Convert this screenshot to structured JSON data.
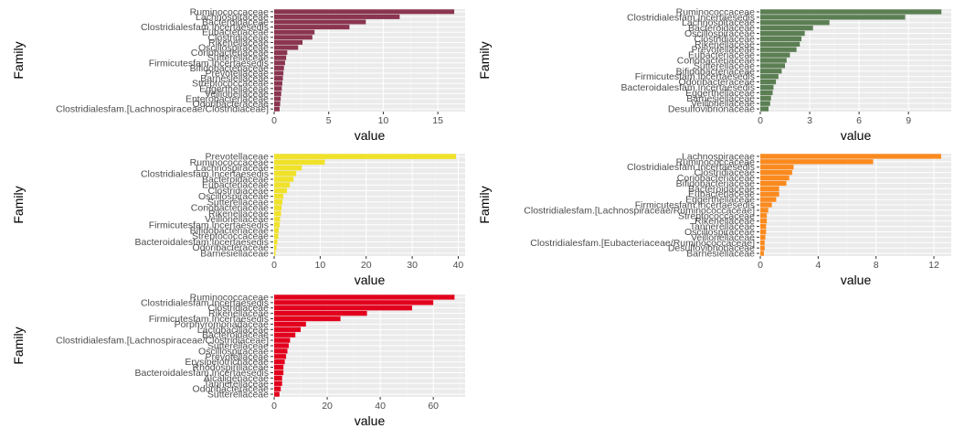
{
  "chart_data": [
    {
      "type": "bar",
      "orientation": "horizontal",
      "xlabel": "value",
      "ylabel": "Family",
      "xlim": [
        0,
        17.5
      ],
      "xticks": [
        0,
        5,
        10,
        15
      ],
      "color": "#8b3550",
      "grid": true,
      "categories": [
        "Ruminococcaceae",
        "Lachnospiraceae",
        "Bacteroidaceae",
        "Clostridialesfam.Incertaesedis",
        "Eubacteriaceae",
        "Clostridiaceae",
        "Rikenellaceae",
        "Oscillospiraceae",
        "Coriobacteriaceae",
        "Sutterellaceae",
        "Firmicutesfam.Incertaesedis",
        "Bifidobacteriaceae",
        "Prevotellaceae",
        "Barnesiellaceae",
        "Streptococcaceae",
        "Eggerthellaceae",
        "Veillonellaceae",
        "Enterobacteriaceae",
        "Odoribacteraceae",
        "Clostridialesfam.[Lachnospiraceae/Clostridiaceae]"
      ],
      "values": [
        16.5,
        11.5,
        8.4,
        6.9,
        3.7,
        3.5,
        2.6,
        2.2,
        1.2,
        1.1,
        1.0,
        0.9,
        0.85,
        0.8,
        0.75,
        0.7,
        0.65,
        0.6,
        0.55,
        0.5
      ]
    },
    {
      "type": "bar",
      "orientation": "horizontal",
      "xlabel": "value",
      "ylabel": "Family",
      "xlim": [
        0,
        11.6
      ],
      "xticks": [
        0,
        3,
        6,
        9
      ],
      "color": "#5b7f53",
      "grid": true,
      "categories": [
        "Ruminococcaceae",
        "Clostridialesfam.Incertaesedis",
        "Lachnospiraceae",
        "Bacteroidaceae",
        "Oscillospiraceae",
        "Clostridiaceae",
        "Rikenellaceae",
        "Prevotellaceae",
        "Eubacteriaceae",
        "Coriobacteriaceae",
        "Sutterellaceae",
        "Bifidobacteriaceae",
        "Firmicutesfam.Incertaesedis",
        "Odoribacteraceae",
        "Bacteroidalesfam.Incertaesedis",
        "Eggerthellaceae",
        "Barnesiellaceae",
        "Veillonellaceae",
        "Desulfovibrionaceae"
      ],
      "values": [
        11.0,
        8.8,
        4.2,
        3.2,
        2.7,
        2.5,
        2.4,
        2.2,
        1.8,
        1.6,
        1.5,
        1.3,
        1.1,
        0.95,
        0.8,
        0.75,
        0.65,
        0.6,
        0.5
      ]
    },
    {
      "type": "bar",
      "orientation": "horizontal",
      "xlabel": "value",
      "ylabel": "Family",
      "xlim": [
        0,
        41.5
      ],
      "xticks": [
        0,
        10,
        20,
        30,
        40
      ],
      "color": "#f0e229",
      "grid": true,
      "categories": [
        "Prevotellaceae",
        "Ruminococcaceae",
        "Lachnospiraceae",
        "Clostridialesfam.Incertaesedis",
        "Bacteroidaceae",
        "Eubacteriaceae",
        "Clostridiaceae",
        "Oscillospiraceae",
        "Sutterellaceae",
        "Coriobacteriaceae",
        "Rikenellaceae",
        "Veillonellaceae",
        "Firmicutesfam.Incertaesedis",
        "Bifidobacteriaceae",
        "Streptococcaceae",
        "Bacteroidalesfam.Incertaesedis",
        "Odoribacteraceae",
        "Barnesiellaceae"
      ],
      "values": [
        39.5,
        11.0,
        6.0,
        4.8,
        4.2,
        3.4,
        2.8,
        2.0,
        1.8,
        1.6,
        1.5,
        1.3,
        1.2,
        1.0,
        0.9,
        0.7,
        0.5,
        0.3
      ]
    },
    {
      "type": "bar",
      "orientation": "horizontal",
      "xlabel": "value",
      "ylabel": "Family",
      "xlim": [
        0,
        13.2
      ],
      "xticks": [
        0,
        4,
        8,
        12
      ],
      "color": "#fb8a1e",
      "grid": true,
      "categories": [
        "Lachnospiraceae",
        "Ruminococcaceae",
        "Clostridialesfam.Incertaesedis",
        "Clostridiaceae",
        "Coriobacteriaceae",
        "Bifidobacteriaceae",
        "Bacteroidaceae",
        "Eubacteriaceae",
        "Eggerthellaceae",
        "Firmicutesfam.Incertaesedis",
        "Clostridialesfam.[Lachnospiraceae/Ruminococcaceae]",
        "Streptococcaceae",
        "Rikenellaceae",
        "Tannerellaceae",
        "Oscillospiraceae",
        "Veillonellaceae",
        "Clostridialesfam.[Eubacteriaceae/Ruminococcaceae]",
        "Desulfovibrionaceae",
        "Barnesiellaceae"
      ],
      "values": [
        12.5,
        7.8,
        2.3,
        2.2,
        2.0,
        1.8,
        1.3,
        1.3,
        1.1,
        0.8,
        0.55,
        0.45,
        0.45,
        0.4,
        0.4,
        0.35,
        0.3,
        0.3,
        0.25
      ]
    },
    {
      "type": "bar",
      "orientation": "horizontal",
      "xlabel": "value",
      "ylabel": "Family",
      "xlim": [
        0,
        72
      ],
      "xticks": [
        0,
        20,
        40,
        60
      ],
      "color": "#e3001c",
      "grid": true,
      "categories": [
        "Ruminococcaceae",
        "Clostridialesfam.Incertaesedis",
        "Clostridiaceae",
        "Rikenellaceae",
        "Firmicutesfam.Incertaesedis",
        "Porphyromonadaceae",
        "Lactobacillaceae",
        "Bacteroidaceae",
        "Clostridialesfam.[Lachnospiraceae/Clostridiaceae]",
        "Sutterellaceae",
        "Oscillospiraceae",
        "Prevotellaceae",
        "Erysipelotrichaceae",
        "Rhodospirillaceae",
        "Bacteroidalesfam.Incertaesedis",
        "Alcaligenaceae",
        "Tannerellaceae",
        "Odoribacteraceae",
        "Sutterellaceae"
      ],
      "values": [
        68,
        60,
        52,
        35,
        25,
        12,
        10,
        8,
        6,
        5.5,
        5,
        4.5,
        4,
        3.5,
        3.5,
        3,
        3,
        2.5,
        2
      ]
    }
  ]
}
